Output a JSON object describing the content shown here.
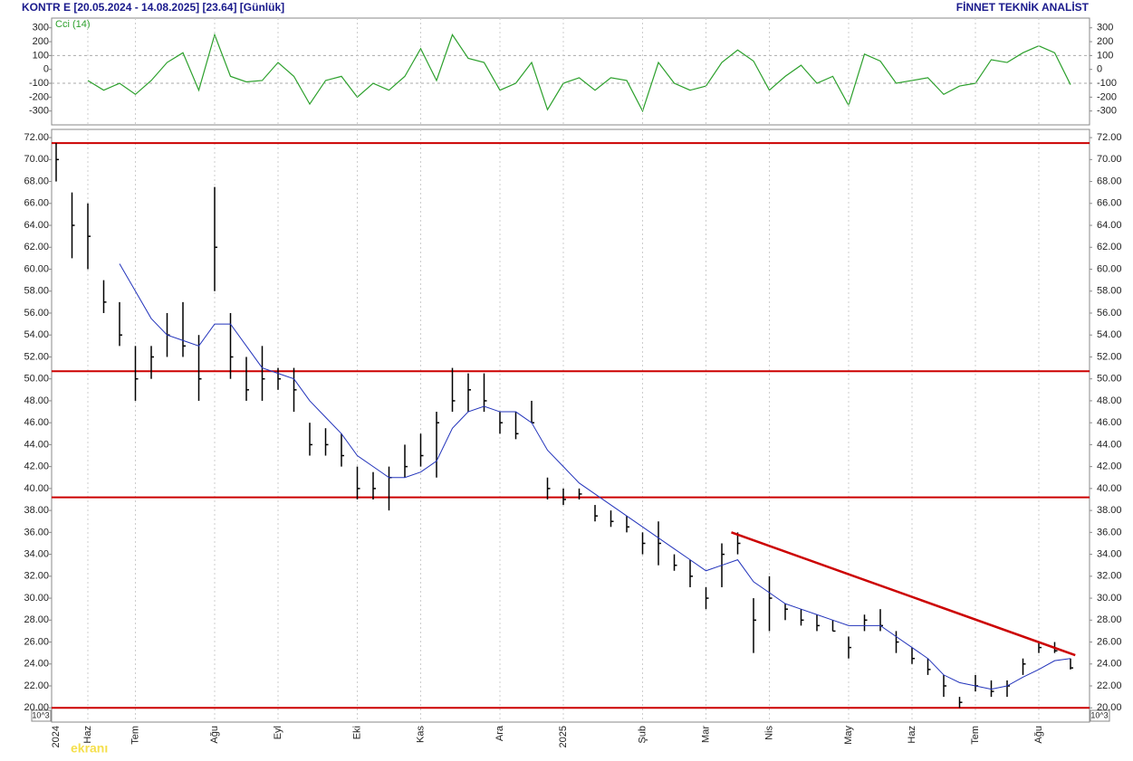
{
  "header": {
    "left": "KONTR E  [20.05.2024 - 14.08.2025]  [23.64]  [Günlük]",
    "right": "FİNNET TEKNİK ANALİST",
    "unit_label": "10^3",
    "logo": "ekranı"
  },
  "chart_data": [
    {
      "type": "line",
      "title": "Cci (14)",
      "color": "#2ca02c",
      "values": [
        null,
        null,
        -80,
        -150,
        -100,
        -180,
        -80,
        50,
        120,
        -150,
        250,
        -50,
        -90,
        -80,
        50,
        -50,
        -250,
        -80,
        -50,
        -200,
        -100,
        -150,
        -50,
        150,
        -80,
        250,
        80,
        50,
        -150,
        -100,
        50,
        -290,
        -100,
        -60,
        -150,
        -60,
        -80,
        -300,
        50,
        -100,
        -150,
        -120,
        50,
        140,
        60,
        -150,
        -50,
        30,
        -100,
        -50,
        -260,
        110,
        60,
        -100,
        -80,
        -60,
        -180,
        -120,
        -100,
        70,
        50,
        120,
        170,
        120,
        -110
      ],
      "ylim": [
        -400,
        370
      ],
      "yticks": [
        300,
        200,
        100,
        0,
        -100,
        -200,
        -300
      ],
      "grid_values": [
        100,
        -100
      ]
    },
    {
      "type": "ohlc",
      "color": "#000000",
      "categories": [
        "2024",
        null,
        "Haz",
        null,
        null,
        "Tem",
        null,
        null,
        null,
        null,
        "Ağu",
        null,
        null,
        null,
        "Eyl",
        null,
        null,
        null,
        null,
        "Eki",
        null,
        null,
        null,
        "Kas",
        null,
        null,
        null,
        null,
        "Ara",
        null,
        null,
        null,
        "2025",
        null,
        null,
        null,
        null,
        "Şub",
        null,
        null,
        null,
        "Mar",
        null,
        null,
        null,
        "Nis",
        null,
        null,
        null,
        null,
        "May",
        null,
        null,
        null,
        "Haz",
        null,
        null,
        null,
        "Tem",
        null,
        null,
        null,
        "Ağu",
        null,
        null
      ],
      "high": [
        71.5,
        67,
        66,
        59,
        57,
        53,
        53,
        56,
        57,
        54,
        67.5,
        56,
        52,
        53,
        51,
        51,
        46,
        45.5,
        45,
        42,
        41.5,
        42,
        44,
        45,
        47,
        51,
        50.5,
        50.5,
        47,
        47,
        48,
        41,
        40,
        40,
        38.5,
        38,
        37.5,
        36,
        37,
        34,
        33.5,
        31,
        35,
        36,
        30,
        32,
        29.5,
        29,
        28.5,
        28,
        26.5,
        28.5,
        29,
        27,
        25.5,
        24.5,
        23,
        21,
        23,
        22.5,
        22.5,
        24.5,
        26,
        26,
        24.5
      ],
      "low": [
        68,
        61,
        60,
        56,
        53,
        48,
        50,
        52,
        52,
        48,
        58,
        50,
        48,
        48,
        49,
        47,
        43,
        43,
        42,
        39,
        39,
        38,
        41,
        42,
        41,
        47,
        47,
        47,
        45,
        44.5,
        46,
        39,
        38.5,
        39,
        37,
        36.5,
        36,
        34,
        33,
        32.5,
        31,
        29,
        31,
        34,
        25,
        27,
        28,
        27.5,
        27,
        27,
        24.5,
        27,
        27,
        25,
        24,
        23,
        21,
        20,
        21.5,
        21,
        21,
        23,
        25,
        25,
        23.5
      ],
      "close": [
        70,
        64,
        63,
        57,
        54,
        50,
        52,
        54,
        53,
        50,
        62,
        52,
        49,
        50,
        50,
        49,
        44,
        44,
        43,
        40,
        40,
        41,
        42,
        43,
        46,
        48,
        49,
        48,
        46,
        45,
        46,
        40,
        39,
        39.5,
        37.5,
        37,
        36.5,
        35,
        35,
        33,
        32,
        30,
        34,
        35,
        28,
        30,
        29,
        28,
        27.5,
        27,
        25.5,
        28,
        27.5,
        26,
        24.5,
        23.5,
        22,
        20.5,
        22,
        21.5,
        22,
        24,
        25.5,
        25.2,
        23.64
      ],
      "moving_average": {
        "color": "#2233bb",
        "values": [
          null,
          null,
          null,
          null,
          60.5,
          58,
          55.5,
          54,
          53.5,
          53,
          55,
          55,
          53,
          51,
          50.5,
          50,
          48,
          46.5,
          45,
          43,
          42,
          41,
          41,
          41.5,
          42.5,
          45.5,
          47,
          47.5,
          47,
          47,
          46,
          43.5,
          42,
          40.5,
          39.5,
          38.5,
          37.5,
          36.5,
          35.5,
          34.5,
          33.5,
          32.5,
          33,
          33.5,
          31.5,
          30.5,
          29.5,
          29,
          28.5,
          28,
          27.5,
          27.5,
          27.5,
          26.5,
          25.5,
          24.5,
          23,
          22.3,
          22,
          21.7,
          22,
          22.8,
          23.5,
          24.3,
          24.5
        ]
      },
      "hlines": {
        "color": "#cc0000",
        "values": [
          71.5,
          50.7,
          39.2,
          20
        ]
      },
      "trendline": {
        "color": "#cc0000",
        "x": [
          42.6,
          64.3
        ],
        "y": [
          36,
          24.8
        ]
      },
      "ylim": [
        18.7,
        72.75
      ],
      "yticks": [
        {
          "value": 72,
          "label": "72.00"
        },
        {
          "value": 70,
          "label": "70.00"
        },
        {
          "value": 68,
          "label": "68.00"
        },
        {
          "value": 66,
          "label": "66.00"
        },
        {
          "value": 64,
          "label": "64.00"
        },
        {
          "value": 62,
          "label": "62.00"
        },
        {
          "value": 60,
          "label": "60.00"
        },
        {
          "value": 58,
          "label": "58.00"
        },
        {
          "value": 56,
          "label": "56.00"
        },
        {
          "value": 54,
          "label": "54.00"
        },
        {
          "value": 52,
          "label": "52.00"
        },
        {
          "value": 50,
          "label": "50.00"
        },
        {
          "value": 48,
          "label": "48.00"
        },
        {
          "value": 46,
          "label": "46.00"
        },
        {
          "value": 44,
          "label": "44.00"
        },
        {
          "value": 42,
          "label": "42.00"
        },
        {
          "value": 40,
          "label": "40.00"
        },
        {
          "value": 38,
          "label": "38.00"
        },
        {
          "value": 36,
          "label": "36.00"
        },
        {
          "value": 34,
          "label": "34.00"
        },
        {
          "value": 32,
          "label": "32.00"
        },
        {
          "value": 30,
          "label": "30.00"
        },
        {
          "value": 28,
          "label": "28.00"
        },
        {
          "value": 26,
          "label": "26.00"
        },
        {
          "value": 24,
          "label": "24.00"
        },
        {
          "value": 22,
          "label": "22.00"
        },
        {
          "value": 20,
          "label": "20.00"
        }
      ]
    }
  ]
}
